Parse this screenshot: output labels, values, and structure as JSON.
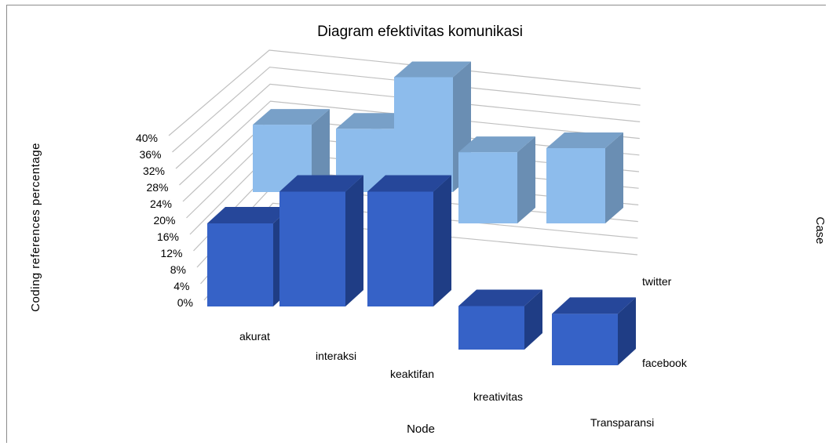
{
  "chart_data": {
    "type": "bar",
    "title": "Diagram efektivitas komunikasi",
    "xlabel": "Node",
    "ylabel": "Coding references percentage",
    "zlabel": "Case",
    "categories": [
      "akurat",
      "interaksi",
      "keaktifan",
      "kreativitas",
      "Transparansi"
    ],
    "series": [
      {
        "name": "facebook",
        "values": [
          21,
          29,
          29,
          11,
          13
        ]
      },
      {
        "name": "twitter",
        "values": [
          17,
          16,
          29,
          18,
          19
        ]
      }
    ],
    "yticks": [
      "0%",
      "4%",
      "8%",
      "12%",
      "16%",
      "20%",
      "24%",
      "28%",
      "32%",
      "36%",
      "40%"
    ],
    "ylim": [
      0,
      40
    ],
    "grid": true,
    "colors": {
      "facebook_front": "#3662c7",
      "facebook_top": "#26479a",
      "facebook_side": "#1f3d85",
      "twitter_front": "#8dbcec",
      "twitter_top": "#78a0c8",
      "twitter_side": "#6a8eb3",
      "grid": "#c0c0c0"
    }
  }
}
